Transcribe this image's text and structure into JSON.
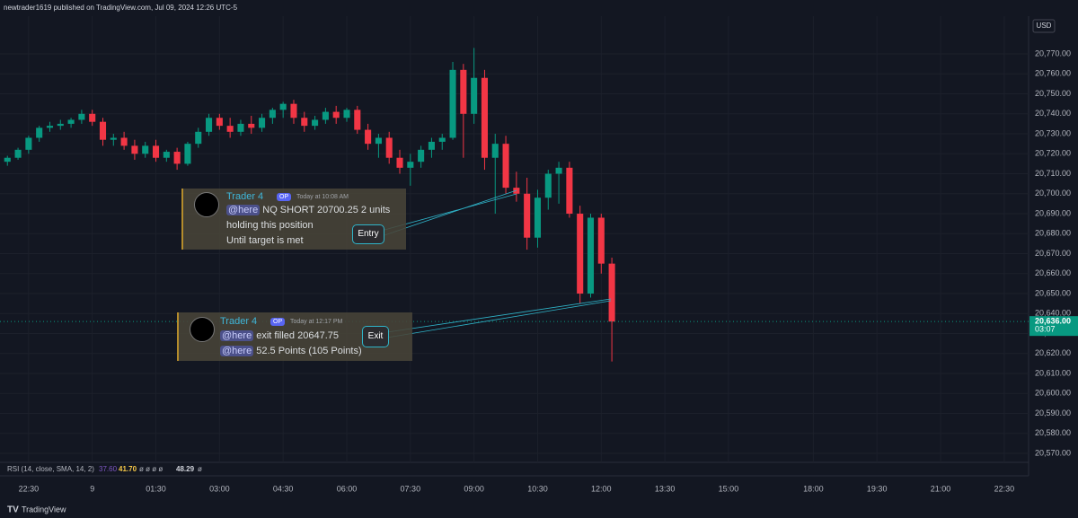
{
  "header": {
    "text": "newtrader1619 published on TradingView.com, Jul 09, 2024 12:26 UTC-5"
  },
  "chart_data": {
    "type": "candlestick",
    "currency": "USD",
    "up_color": "#089981",
    "down_color": "#f23645",
    "x": [
      0,
      1,
      2,
      3,
      4,
      5,
      6,
      7,
      8,
      9,
      10,
      11,
      12,
      13,
      14,
      15,
      16,
      17,
      18,
      19,
      20,
      21,
      22,
      23,
      24,
      25,
      26,
      27,
      28,
      29,
      30,
      31,
      32,
      33,
      34,
      35,
      36,
      37,
      38,
      39,
      40,
      41,
      42,
      43,
      44,
      45,
      46,
      47,
      48,
      49,
      50,
      51,
      52,
      53,
      54,
      55,
      56,
      57
    ],
    "open": [
      20716,
      20718,
      20722,
      20728,
      20733,
      20734,
      20735,
      20737,
      20740,
      20736,
      20727,
      20728,
      20724,
      20720,
      20724,
      20718,
      20721,
      20715,
      20725,
      20731,
      20738,
      20734,
      20731,
      20735,
      20733,
      20738,
      20742,
      20745,
      20738,
      20734,
      20737,
      20741,
      20738,
      20742,
      20732,
      20725,
      20728,
      20718,
      20713,
      20716,
      20722,
      20726,
      20728,
      20762,
      20740,
      20758,
      20718,
      20725,
      20703,
      20700,
      20678,
      20698,
      20710,
      20713,
      20690,
      20650,
      20688,
      20665
    ],
    "high": [
      20719,
      20723,
      20729,
      20734,
      20736,
      20737,
      20738,
      20742,
      20742,
      20738,
      20730,
      20731,
      20727,
      20726,
      20727,
      20722,
      20723,
      20726,
      20733,
      20740,
      20740,
      20738,
      20737,
      20739,
      20740,
      20743,
      20746,
      20747,
      20741,
      20739,
      20743,
      20744,
      20743,
      20744,
      20735,
      20730,
      20731,
      20722,
      20720,
      20724,
      20728,
      20730,
      20766,
      20765,
      20773,
      20762,
      20730,
      20729,
      20711,
      20708,
      20702,
      20712,
      20716,
      20716,
      20694,
      20690,
      20690,
      20668
    ],
    "low": [
      20714,
      20717,
      20720,
      20726,
      20731,
      20732,
      20733,
      20735,
      20734,
      20724,
      20724,
      20722,
      20717,
      20718,
      20716,
      20716,
      20712,
      20714,
      20723,
      20729,
      20732,
      20728,
      20729,
      20730,
      20731,
      20735,
      20738,
      20735,
      20731,
      20732,
      20735,
      20735,
      20736,
      20730,
      20722,
      20718,
      20715,
      20710,
      20704,
      20713,
      20718,
      20722,
      20727,
      20718,
      20735,
      20712,
      20690,
      20700,
      20696,
      20672,
      20673,
      20692,
      20695,
      20688,
      20645,
      20648,
      20660,
      20616
    ],
    "close": [
      20718,
      20722,
      20728,
      20733,
      20734,
      20735,
      20737,
      20740,
      20736,
      20727,
      20728,
      20724,
      20720,
      20724,
      20718,
      20721,
      20715,
      20725,
      20731,
      20738,
      20734,
      20731,
      20735,
      20733,
      20738,
      20742,
      20745,
      20738,
      20734,
      20737,
      20741,
      20738,
      20742,
      20732,
      20725,
      20728,
      20718,
      20713,
      20716,
      20722,
      20726,
      20728,
      20762,
      20740,
      20758,
      20718,
      20725,
      20703,
      20700,
      20678,
      20698,
      20710,
      20713,
      20690,
      20650,
      20688,
      20665,
      20636
    ],
    "xlim": [
      -0.7,
      96.3
    ],
    "xticks": [
      {
        "value": 2,
        "label": "22:30"
      },
      {
        "value": 8,
        "label": "9"
      },
      {
        "value": 14,
        "label": "01:30"
      },
      {
        "value": 20,
        "label": "03:00"
      },
      {
        "value": 26,
        "label": "04:30"
      },
      {
        "value": 32,
        "label": "06:00"
      },
      {
        "value": 38,
        "label": "07:30"
      },
      {
        "value": 44,
        "label": "09:00"
      },
      {
        "value": 50,
        "label": "10:30"
      },
      {
        "value": 56,
        "label": "12:00"
      },
      {
        "value": 62,
        "label": "13:30"
      },
      {
        "value": 68,
        "label": "15:00"
      },
      {
        "value": 76,
        "label": "18:00"
      },
      {
        "value": 82,
        "label": "19:30"
      },
      {
        "value": 88,
        "label": "21:00"
      },
      {
        "value": 94,
        "label": "22:30"
      }
    ],
    "ylim": [
      20565.5,
      20788
    ],
    "yticks": [
      {
        "value": 20570,
        "label": "20,570.00"
      },
      {
        "value": 20580,
        "label": "20,580.00"
      },
      {
        "value": 20590,
        "label": "20,590.00"
      },
      {
        "value": 20600,
        "label": "20,600.00"
      },
      {
        "value": 20610,
        "label": "20,610.00"
      },
      {
        "value": 20620,
        "label": "20,620.00"
      },
      {
        "value": 20630,
        "label": "20,630.00"
      },
      {
        "value": 20640,
        "label": "20,640.00"
      },
      {
        "value": 20650,
        "label": "20,650.00"
      },
      {
        "value": 20660,
        "label": "20,660.00"
      },
      {
        "value": 20670,
        "label": "20,670.00"
      },
      {
        "value": 20680,
        "label": "20,680.00"
      },
      {
        "value": 20690,
        "label": "20,690.00"
      },
      {
        "value": 20700,
        "label": "20,700.00"
      },
      {
        "value": 20710,
        "label": "20,710.00"
      },
      {
        "value": 20720,
        "label": "20,720.00"
      },
      {
        "value": 20730,
        "label": "20,730.00"
      },
      {
        "value": 20740,
        "label": "20,740.00"
      },
      {
        "value": 20750,
        "label": "20,750.00"
      },
      {
        "value": 20760,
        "label": "20,760.00"
      },
      {
        "value": 20770,
        "label": "20,770.00"
      }
    ],
    "grid": true,
    "last_price": {
      "value": 20636,
      "label": "20,636.00"
    },
    "countdown": "03:07"
  },
  "indicator": {
    "name": "RSI (14, close, SMA, 14, 2)",
    "values": [
      {
        "value": 37.6,
        "label": "37.60"
      },
      {
        "value": 41.7,
        "label": "41.70"
      },
      {
        "value": 48.29,
        "label": "48.29"
      }
    ],
    "empty": "ø ø ø ø",
    "empty2": "ø"
  },
  "messages": [
    {
      "author": "Trader 4",
      "badge": "OP",
      "time": "Today at 10:08 AM",
      "mention": "@here",
      "lines": [
        "NQ SHORT 20700.25 2 units",
        "holding this position",
        "Until target is met"
      ],
      "tag": "Entry"
    },
    {
      "author": "Trader 4",
      "badge": "OP",
      "time": "Today at 12:17 PM",
      "mention": "@here",
      "lines": [
        "exit filled 20647.75",
        "52.5 Points (105 Points)"
      ],
      "mention2": "@here",
      "tag": "Exit"
    }
  ],
  "footer": {
    "brand": "TradingView"
  }
}
